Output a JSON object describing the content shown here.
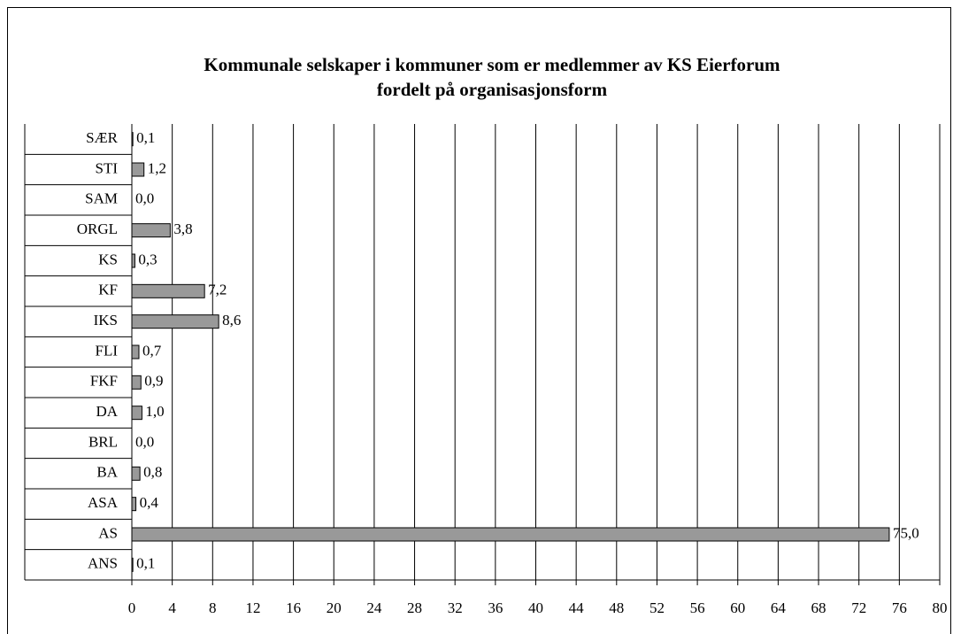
{
  "chart_data": {
    "type": "barh",
    "title": [
      "Kommunale selskaper i kommuner som er medlemmer av KS Eierforum",
      "fordelt på organisasjonsform"
    ],
    "categories": [
      "SÆR",
      "STI",
      "SAM",
      "ORGL",
      "KS",
      "KF",
      "IKS",
      "FLI",
      "FKF",
      "DA",
      "BRL",
      "BA",
      "ASA",
      "AS",
      "ANS"
    ],
    "values": [
      0.1,
      1.2,
      0.0,
      3.8,
      0.3,
      7.2,
      8.6,
      0.7,
      0.9,
      1.0,
      0.0,
      0.8,
      0.4,
      75.0,
      0.1
    ],
    "value_labels": [
      "0,1",
      "1,2",
      "0,0",
      "3,8",
      "0,3",
      "7,2",
      "8,6",
      "0,7",
      "0,9",
      "1,0",
      "0,0",
      "0,8",
      "0,4",
      "75,0",
      "0,1"
    ],
    "color": "#999999",
    "xlim": [
      0,
      80
    ],
    "xticks": [
      0,
      4,
      8,
      12,
      16,
      20,
      24,
      28,
      32,
      36,
      40,
      44,
      48,
      52,
      56,
      60,
      64,
      68,
      72,
      76,
      80
    ],
    "grid": true
  }
}
